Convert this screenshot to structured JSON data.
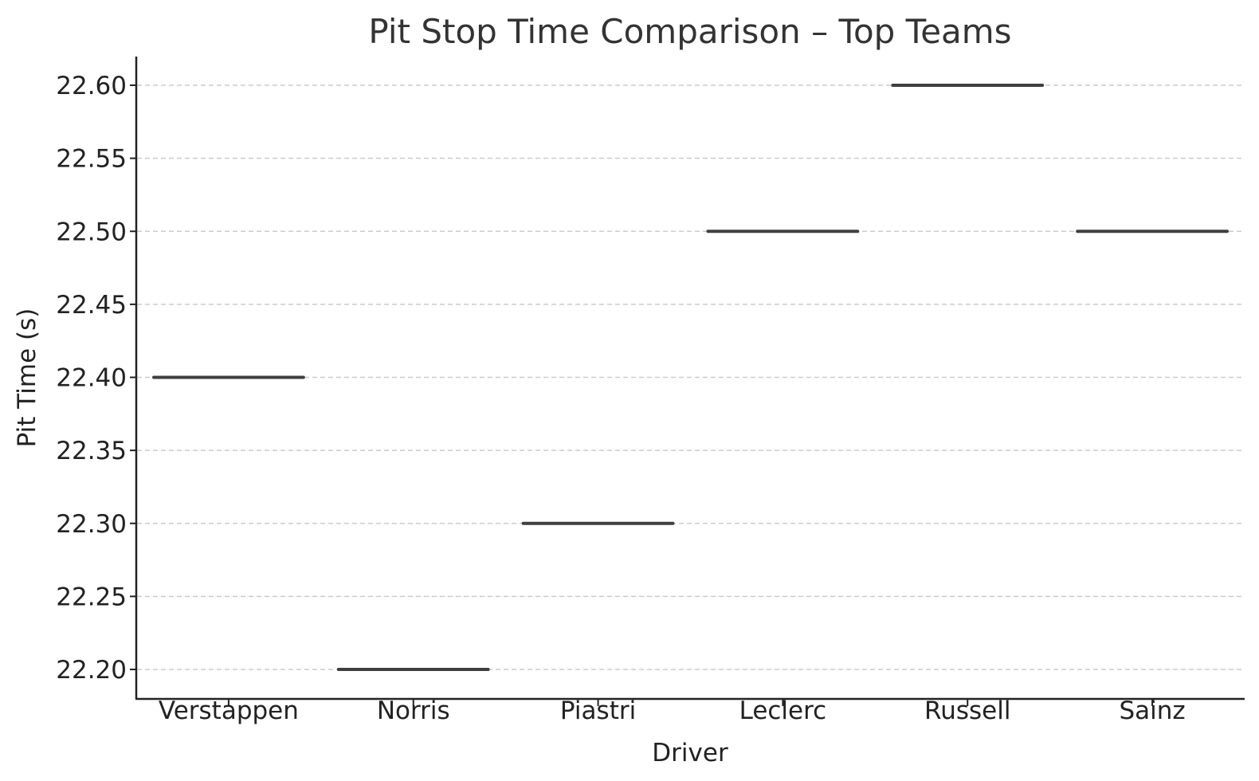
{
  "chart_data": {
    "type": "box",
    "title": "Pit Stop Time Comparison – Top Teams",
    "xlabel": "Driver",
    "ylabel": "Pit Time (s)",
    "categories": [
      "Verstappen",
      "Norris",
      "Piastri",
      "Leclerc",
      "Russell",
      "Sainz"
    ],
    "values": [
      22.4,
      22.2,
      22.3,
      22.5,
      22.6,
      22.5
    ],
    "ylim": [
      22.18,
      22.62
    ],
    "yticks": [
      22.2,
      22.25,
      22.3,
      22.35,
      22.4,
      22.45,
      22.5,
      22.55,
      22.6
    ],
    "ytick_labels": [
      "22.20",
      "22.25",
      "22.30",
      "22.35",
      "22.40",
      "22.45",
      "22.50",
      "22.55",
      "22.60"
    ],
    "grid": "y-dashed",
    "line_color": "#3f3f3f"
  }
}
